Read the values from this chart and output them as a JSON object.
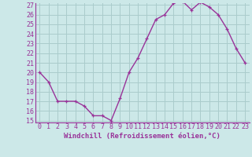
{
  "x": [
    0,
    1,
    2,
    3,
    4,
    5,
    6,
    7,
    8,
    9,
    10,
    11,
    12,
    13,
    14,
    15,
    16,
    17,
    18,
    19,
    20,
    21,
    22,
    23
  ],
  "y": [
    20,
    19,
    17,
    17,
    17,
    16.5,
    15.5,
    15.5,
    15,
    17.3,
    20,
    21.5,
    23.5,
    25.5,
    26,
    27.2,
    27.4,
    26.5,
    27.3,
    26.8,
    26,
    24.5,
    22.5,
    21
  ],
  "line_color": "#993399",
  "marker_color": "#993399",
  "bg_color": "#cce8e8",
  "grid_color": "#aacccc",
  "xlabel": "Windchill (Refroidissement éolien,°C)",
  "ylim": [
    15,
    27
  ],
  "xlim": [
    0,
    23
  ],
  "yticks": [
    15,
    16,
    17,
    18,
    19,
    20,
    21,
    22,
    23,
    24,
    25,
    26,
    27
  ],
  "xticks": [
    0,
    1,
    2,
    3,
    4,
    5,
    6,
    7,
    8,
    9,
    10,
    11,
    12,
    13,
    14,
    15,
    16,
    17,
    18,
    19,
    20,
    21,
    22,
    23
  ],
  "tick_color": "#993399",
  "spine_color": "#993399",
  "xlabel_fontsize": 6.5,
  "tick_fontsize": 6.0,
  "linewidth": 1.0,
  "markersize": 3.5
}
